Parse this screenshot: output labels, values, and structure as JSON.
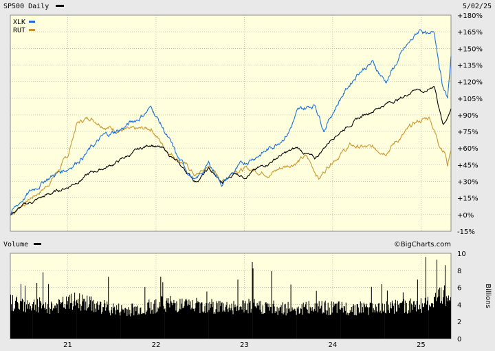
{
  "header": {
    "title": "SP500 Daily",
    "date": "5/02/25"
  },
  "volume_panel": {
    "title": "Volume",
    "watermark": "©BigCharts.com",
    "unit": "Billions"
  },
  "colors": {
    "background": "#ffffdd",
    "frame": "#e9e9e9",
    "sp500": "#000000",
    "xlk": "#1a6fd9",
    "rut": "#c8962e",
    "grid": "#a0a0a0"
  },
  "chart_data": {
    "type": "line",
    "title": "SP500 Daily",
    "x_tick_labels": [
      "21",
      "22",
      "23",
      "24",
      "25"
    ],
    "y_tick_labels": [
      "+180%",
      "+165%",
      "+150%",
      "+135%",
      "+120%",
      "+105%",
      "+90%",
      "+75%",
      "+60%",
      "+45%",
      "+30%",
      "+15%",
      "+0%",
      "-15%"
    ],
    "ylim": [
      -15,
      180
    ],
    "x_range": [
      2020.35,
      2025.34
    ],
    "grid": true,
    "legend": [
      "XLK",
      "RUT"
    ],
    "series": [
      {
        "name": "SP500",
        "color": "#000000",
        "x": [
          2020.35,
          2020.5,
          2020.75,
          2021.0,
          2021.25,
          2021.5,
          2021.75,
          2021.95,
          2022.1,
          2022.3,
          2022.45,
          2022.6,
          2022.75,
          2022.9,
          2023.0,
          2023.2,
          2023.4,
          2023.6,
          2023.8,
          2024.0,
          2024.2,
          2024.4,
          2024.6,
          2024.8,
          2024.95,
          2025.05,
          2025.15,
          2025.25,
          2025.3,
          2025.34
        ],
        "values": [
          0,
          8,
          17,
          25,
          37,
          45,
          56,
          64,
          58,
          42,
          30,
          41,
          28,
          38,
          35,
          43,
          53,
          60,
          50,
          70,
          82,
          92,
          100,
          106,
          115,
          110,
          117,
          80,
          88,
          97
        ]
      },
      {
        "name": "XLK",
        "color": "#1a6fd9",
        "x": [
          2020.35,
          2020.5,
          2020.75,
          2021.0,
          2021.2,
          2021.4,
          2021.6,
          2021.8,
          2021.95,
          2022.1,
          2022.25,
          2022.45,
          2022.6,
          2022.75,
          2022.9,
          2023.1,
          2023.3,
          2023.5,
          2023.6,
          2023.8,
          2023.9,
          2024.1,
          2024.3,
          2024.45,
          2024.6,
          2024.8,
          2025.0,
          2025.1,
          2025.15,
          2025.25,
          2025.3,
          2025.34
        ],
        "values": [
          0,
          15,
          32,
          42,
          55,
          70,
          77,
          87,
          97,
          75,
          50,
          30,
          46,
          28,
          40,
          52,
          60,
          75,
          92,
          100,
          78,
          107,
          130,
          137,
          120,
          147,
          168,
          160,
          165,
          115,
          105,
          140
        ]
      },
      {
        "name": "RUT",
        "color": "#c8962e",
        "x": [
          2020.35,
          2020.5,
          2020.75,
          2021.0,
          2021.1,
          2021.25,
          2021.5,
          2021.75,
          2021.95,
          2022.1,
          2022.3,
          2022.45,
          2022.6,
          2022.75,
          2022.9,
          2023.1,
          2023.3,
          2023.5,
          2023.7,
          2023.85,
          2024.0,
          2024.2,
          2024.4,
          2024.6,
          2024.8,
          2024.95,
          2025.1,
          2025.2,
          2025.27,
          2025.3,
          2025.34
        ],
        "values": [
          0,
          10,
          25,
          52,
          82,
          88,
          78,
          75,
          78,
          60,
          48,
          35,
          43,
          30,
          42,
          40,
          38,
          45,
          52,
          33,
          50,
          62,
          60,
          58,
          72,
          83,
          88,
          65,
          58,
          45,
          60
        ]
      }
    ],
    "volume": {
      "ylabel": "Billions",
      "y_tick_labels": [
        "10",
        "8",
        "6",
        "4",
        "2",
        "0"
      ],
      "ylim": [
        0,
        10
      ],
      "x": [
        2020.35,
        2020.6,
        2020.85,
        2021.1,
        2021.35,
        2021.6,
        2021.85,
        2022.1,
        2022.35,
        2022.6,
        2022.85,
        2023.1,
        2023.35,
        2023.6,
        2023.85,
        2024.1,
        2024.35,
        2024.6,
        2024.85,
        2025.1,
        2025.25,
        2025.34
      ],
      "values": [
        4.6,
        4.3,
        4.0,
        4.8,
        4.1,
        3.6,
        3.8,
        4.5,
        4.2,
        4.1,
        4.0,
        4.1,
        3.9,
        3.8,
        3.9,
        3.8,
        3.9,
        3.9,
        4.1,
        4.4,
        5.6,
        4.9
      ]
    }
  }
}
